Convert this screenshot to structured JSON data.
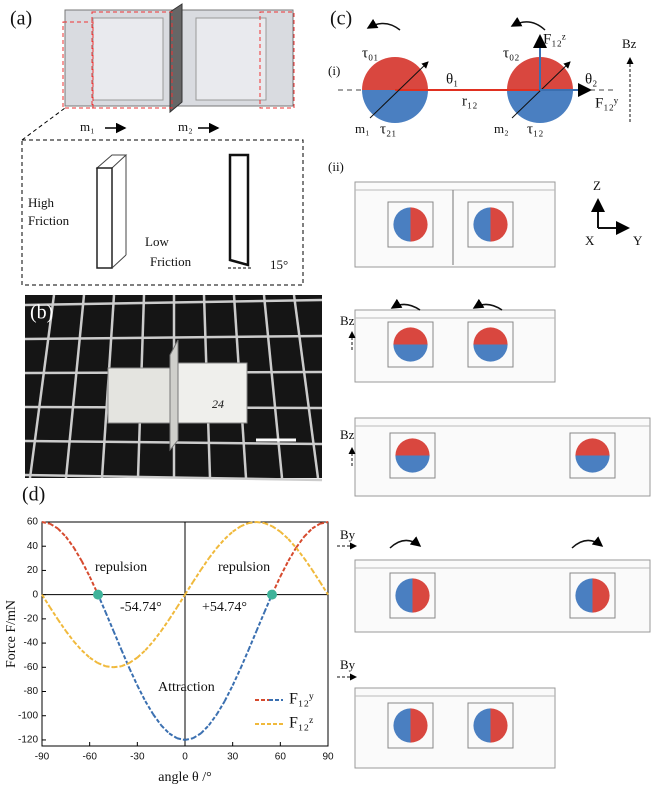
{
  "panels": {
    "a": {
      "label": "(a)",
      "mass_1": "m₁",
      "mass_2": "m₂",
      "high_friction": [
        "High",
        "Friction"
      ],
      "low_friction": [
        "Low",
        "Friction"
      ],
      "angle": "15°"
    },
    "b": {
      "label": "(b)",
      "tag": "24"
    },
    "c": {
      "label": "(c)",
      "sub_i": "(i)",
      "tau_01": "τ₀₁",
      "theta_1": "θ₁",
      "r_12": "r₁₂",
      "m_1": "m₁",
      "tau_21": "τ₂₁",
      "tau_02": "τ₀₂",
      "f_z": "F₁₂ᶻ",
      "theta_2": "θ₂",
      "f_y": "F₁₂ʸ",
      "m_2": "m₂",
      "tau_12": "τ₁₂",
      "field_i": "Bz",
      "sub_ii": "(ii)",
      "axes": [
        "Z",
        "X",
        "Y"
      ],
      "field_labels": [
        "Bz",
        "Bz",
        "By",
        "By"
      ]
    }
  },
  "chart_data": {
    "type": "line",
    "label": "(d)",
    "x_label": "angle θ /°",
    "y_label": "Force F/mN",
    "x": [
      -90,
      -85,
      -80,
      -75,
      -70,
      -65,
      -60,
      -55,
      -50,
      -45,
      -40,
      -35,
      -30,
      -25,
      -20,
      -15,
      -10,
      -5,
      0,
      5,
      10,
      15,
      20,
      25,
      30,
      35,
      40,
      45,
      50,
      55,
      60,
      65,
      70,
      75,
      80,
      85,
      90
    ],
    "series": [
      {
        "name": "F₁₂ʸ",
        "color": "#3a6fb0",
        "positive_color": "#d64a2e",
        "line_style": "dashed",
        "values": [
          60,
          58.6,
          54.6,
          47.9,
          38.9,
          27.8,
          15,
          0.8,
          -14.4,
          -30,
          -45.6,
          -60.8,
          -75,
          -87.9,
          -98.9,
          -107.9,
          -114.6,
          -118.6,
          -120,
          -118.6,
          -114.6,
          -107.9,
          -98.9,
          -87.9,
          -75,
          -60.8,
          -45.6,
          -30,
          -14.4,
          0.8,
          15,
          27.8,
          38.9,
          47.9,
          54.6,
          58.6,
          60
        ]
      },
      {
        "name": "F₁₂ᶻ",
        "color": "#f0b93b",
        "line_style": "dashed",
        "values": [
          0,
          -10.4,
          -20.5,
          -30,
          -38.6,
          -46,
          -52,
          -56.4,
          -59.1,
          -60,
          -59.1,
          -56.4,
          -52,
          -46,
          -38.6,
          -30,
          -20.5,
          -10.4,
          0,
          10.4,
          20.5,
          30,
          38.6,
          46,
          52,
          56.4,
          59.1,
          60,
          59.1,
          56.4,
          52,
          46,
          38.6,
          30,
          20.5,
          10.4,
          0
        ]
      }
    ],
    "points": {
      "x": [
        -54.74,
        54.74
      ],
      "y": [
        0,
        0
      ],
      "color": "#3fb39a"
    },
    "annotations": [
      "repulsion",
      "repulsion",
      "-54.74°",
      "+54.74°",
      "Attraction"
    ],
    "xlim": [
      -90,
      90
    ],
    "ylim": [
      -125,
      60
    ],
    "xticks": [
      -90,
      -60,
      -30,
      0,
      30,
      60,
      90
    ],
    "yticks": [
      60,
      40,
      20,
      0,
      -20,
      -40,
      -60,
      -80,
      -100,
      -120
    ]
  }
}
